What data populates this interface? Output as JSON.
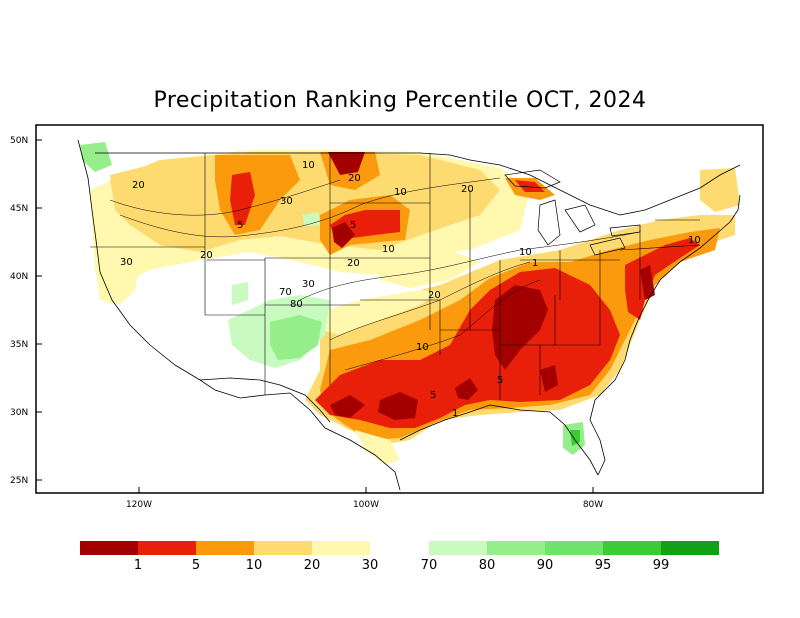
{
  "title": "Precipitation Ranking Percentile OCT, 2024",
  "axes": {
    "lat_labels": [
      "50N",
      "45N",
      "40N",
      "35N",
      "30N",
      "25N"
    ],
    "lon_labels": [
      "120W",
      "100W",
      "80W"
    ]
  },
  "legend": {
    "dry_colors": [
      "#a50000",
      "#e8200a",
      "#fb9a0c",
      "#fedb70",
      "#fff8ae"
    ],
    "wet_colors": [
      "#c9fbc0",
      "#96ee8a",
      "#70e46a",
      "#3ccb34",
      "#12a014"
    ],
    "dry_labels": [
      "1",
      "5",
      "10",
      "20",
      "30"
    ],
    "wet_labels": [
      "70",
      "80",
      "90",
      "95",
      "99"
    ]
  },
  "contour_labels": [
    "10",
    "20",
    "20",
    "30",
    "5",
    "20",
    "30",
    "10",
    "5",
    "10",
    "20",
    "20",
    "10",
    "1",
    "20",
    "30",
    "70",
    "80",
    "10",
    "5",
    "5",
    "1",
    "10"
  ],
  "colors": {
    "background": "#ffffff",
    "land_neutral": "#ffffff"
  }
}
